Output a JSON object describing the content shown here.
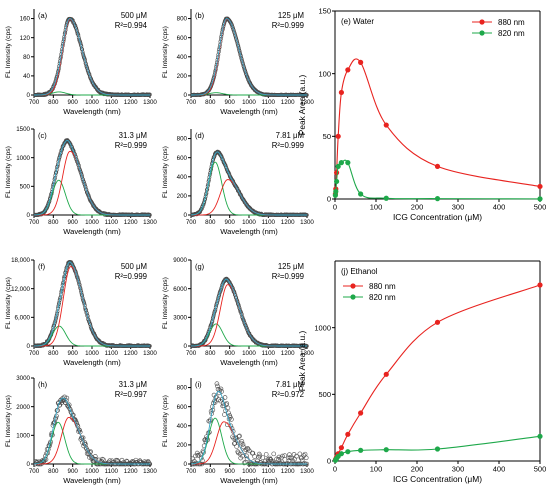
{
  "colors": {
    "axis": "#000000",
    "series_880": "#e8231f",
    "series_820": "#1ea84a",
    "spectrum_points": "#555555",
    "fit_total": "#35a7c9",
    "fit_880": "#e8231f",
    "fit_820": "#1ea84a"
  },
  "chart_data": [
    {
      "id": "a",
      "type": "line",
      "panel_label": "(a)",
      "solvent": "Water",
      "conc_label": "500 μM",
      "r2_label": "R²=0.994",
      "xlabel": "Wavelength (nm)",
      "ylabel": "FL Intensity (cps)",
      "xlim": [
        700,
        1300
      ],
      "x_ticks": [
        700,
        800,
        900,
        1000,
        1100,
        1200,
        1300
      ],
      "ylim": [
        0,
        180
      ],
      "y_ticks": [
        0,
        40,
        80,
        120,
        160
      ],
      "peak_880_nm": 886,
      "peak_820_nm": 830,
      "max_intensity": 160,
      "fraction_820": 0.04,
      "noise": 0.01
    },
    {
      "id": "b",
      "type": "line",
      "panel_label": "(b)",
      "solvent": "Water",
      "conc_label": "125 μM",
      "r2_label": "R²=0.999",
      "xlabel": "Wavelength (nm)",
      "ylabel": "FL Intensity (cps)",
      "xlim": [
        700,
        1300
      ],
      "x_ticks": [
        700,
        800,
        900,
        1000,
        1100,
        1200,
        1300
      ],
      "ylim": [
        0,
        900
      ],
      "y_ticks": [
        0,
        200,
        400,
        600,
        800
      ],
      "peak_880_nm": 886,
      "peak_820_nm": 830,
      "max_intensity": 800,
      "fraction_820": 0.03,
      "noise": 0.005
    },
    {
      "id": "c",
      "type": "line",
      "panel_label": "(c)",
      "solvent": "Water",
      "conc_label": "31.3 μM",
      "r2_label": "R²=0.999",
      "xlabel": "Wavelength (nm)",
      "ylabel": "FL Intensity (cps)",
      "xlim": [
        700,
        1300
      ],
      "x_ticks": [
        700,
        800,
        900,
        1000,
        1100,
        1200,
        1300
      ],
      "ylim": [
        0,
        1500
      ],
      "y_ticks": [
        0,
        500,
        1000,
        1500
      ],
      "peak_880_nm": 886,
      "peak_820_nm": 828,
      "max_intensity": 1300,
      "fraction_820": 0.42,
      "noise": 0.01
    },
    {
      "id": "d",
      "type": "line",
      "panel_label": "(d)",
      "solvent": "Water",
      "conc_label": "7.81 μM",
      "r2_label": "R²=0.999",
      "xlabel": "Wavelength (nm)",
      "ylabel": "FL Intensity (cps)",
      "xlim": [
        700,
        1300
      ],
      "x_ticks": [
        700,
        800,
        900,
        1000,
        1100,
        1200,
        1300
      ],
      "ylim": [
        0,
        900
      ],
      "y_ticks": [
        0,
        200,
        400,
        600,
        800
      ],
      "peak_880_nm": 890,
      "peak_820_nm": 825,
      "max_intensity": 660,
      "fraction_820": 0.82,
      "noise": 0.01
    },
    {
      "id": "e",
      "type": "line",
      "panel_label": "(e) Water",
      "xlabel": "ICG Concentration (μM)",
      "ylabel": "Peak Area (a.u.)",
      "xlim": [
        0,
        500
      ],
      "x_ticks": [
        0,
        100,
        200,
        300,
        400,
        500
      ],
      "ylim": [
        0,
        150
      ],
      "y_ticks": [
        0,
        50,
        100,
        150
      ],
      "legend_position": "top-right",
      "series": [
        {
          "name": "880 nm",
          "color_key": "series_880",
          "x": [
            0.98,
            1.95,
            3.91,
            7.81,
            15.6,
            31.3,
            62.5,
            125,
            250,
            500
          ],
          "y": [
            4,
            8,
            21,
            50,
            85,
            103,
            109,
            59,
            26,
            10
          ]
        },
        {
          "name": "820 nm",
          "color_key": "series_820",
          "x": [
            0.98,
            1.95,
            3.91,
            7.81,
            15.6,
            31.3,
            62.5,
            125,
            250,
            500
          ],
          "y": [
            3,
            6,
            14,
            26,
            29,
            29,
            4,
            0.6,
            0.3,
            0.1
          ]
        }
      ]
    },
    {
      "id": "f",
      "type": "line",
      "panel_label": "(f)",
      "solvent": "Ethanol",
      "conc_label": "500 μM",
      "r2_label": "R²=0.999",
      "xlabel": "Wavelength (nm)",
      "ylabel": "FL Intensity (cps)",
      "xlim": [
        700,
        1300
      ],
      "x_ticks": [
        700,
        800,
        900,
        1000,
        1100,
        1200,
        1300
      ],
      "ylim": [
        0,
        18000
      ],
      "y_ticks": [
        0,
        6000,
        12000,
        18000
      ],
      "y_tick_labels": [
        "0",
        "6,000",
        "12,000",
        "18,000"
      ],
      "peak_880_nm": 890,
      "peak_820_nm": 830,
      "max_intensity": 17600,
      "fraction_820": 0.22,
      "noise": 0.01
    },
    {
      "id": "g",
      "type": "line",
      "panel_label": "(g)",
      "solvent": "Ethanol",
      "conc_label": "125 μM",
      "r2_label": "R²=0.999",
      "xlabel": "Wavelength (nm)",
      "ylabel": "FL Intensity (cps)",
      "xlim": [
        700,
        1300
      ],
      "x_ticks": [
        700,
        800,
        900,
        1000,
        1100,
        1200,
        1300
      ],
      "ylim": [
        0,
        9000
      ],
      "y_ticks": [
        0,
        3000,
        6000,
        9000
      ],
      "peak_880_nm": 890,
      "peak_820_nm": 830,
      "max_intensity": 7000,
      "fraction_820": 0.3,
      "noise": 0.01
    },
    {
      "id": "h",
      "type": "scatter",
      "panel_label": "(h)",
      "solvent": "Ethanol",
      "conc_label": "31.3 μM",
      "r2_label": "R²=0.997",
      "xlabel": "Wavelength (nm)",
      "ylabel": "FL Intensity (cps)",
      "xlim": [
        700,
        1300
      ],
      "x_ticks": [
        700,
        800,
        900,
        1000,
        1100,
        1200,
        1300
      ],
      "ylim": [
        0,
        3000
      ],
      "y_ticks": [
        0,
        1000,
        2000,
        3000
      ],
      "peak_880_nm": 880,
      "peak_820_nm": 825,
      "max_intensity": 2300,
      "fraction_820": 0.6,
      "noise": 0.06
    },
    {
      "id": "i",
      "type": "scatter",
      "panel_label": "(i)",
      "solvent": "Ethanol",
      "conc_label": "7.81 μM",
      "r2_label": "R²=0.972",
      "xlabel": "Wavelength (nm)",
      "ylabel": "FL Intensity (cps)",
      "xlim": [
        700,
        1300
      ],
      "x_ticks": [
        700,
        800,
        900,
        1000,
        1100,
        1200,
        1300
      ],
      "ylim": [
        0,
        900
      ],
      "y_ticks": [
        0,
        200,
        400,
        600,
        800
      ],
      "peak_880_nm": 870,
      "peak_820_nm": 825,
      "max_intensity": 760,
      "fraction_820": 0.68,
      "noise": 0.14
    },
    {
      "id": "j",
      "type": "line",
      "panel_label": "(j) Ethanol",
      "xlabel": "ICG Concentration (μM)",
      "ylabel": "Peak Area (a.u.)",
      "xlim": [
        0,
        500
      ],
      "x_ticks": [
        0,
        100,
        200,
        300,
        400,
        500
      ],
      "ylim": [
        0,
        1500
      ],
      "y_ticks": [
        0,
        500,
        1000
      ],
      "legend_position": "top-left",
      "series": [
        {
          "name": "880 nm",
          "color_key": "series_880",
          "x": [
            0.98,
            1.95,
            3.91,
            7.81,
            15.6,
            31.3,
            62.5,
            125,
            250,
            500
          ],
          "y": [
            8,
            15,
            30,
            55,
            100,
            200,
            360,
            650,
            1040,
            1320
          ]
        },
        {
          "name": "820 nm",
          "color_key": "series_820",
          "x": [
            0.98,
            1.95,
            3.91,
            7.81,
            15.6,
            31.3,
            62.5,
            125,
            250,
            500
          ],
          "y": [
            5,
            10,
            20,
            35,
            55,
            70,
            80,
            85,
            90,
            185
          ]
        }
      ]
    }
  ]
}
